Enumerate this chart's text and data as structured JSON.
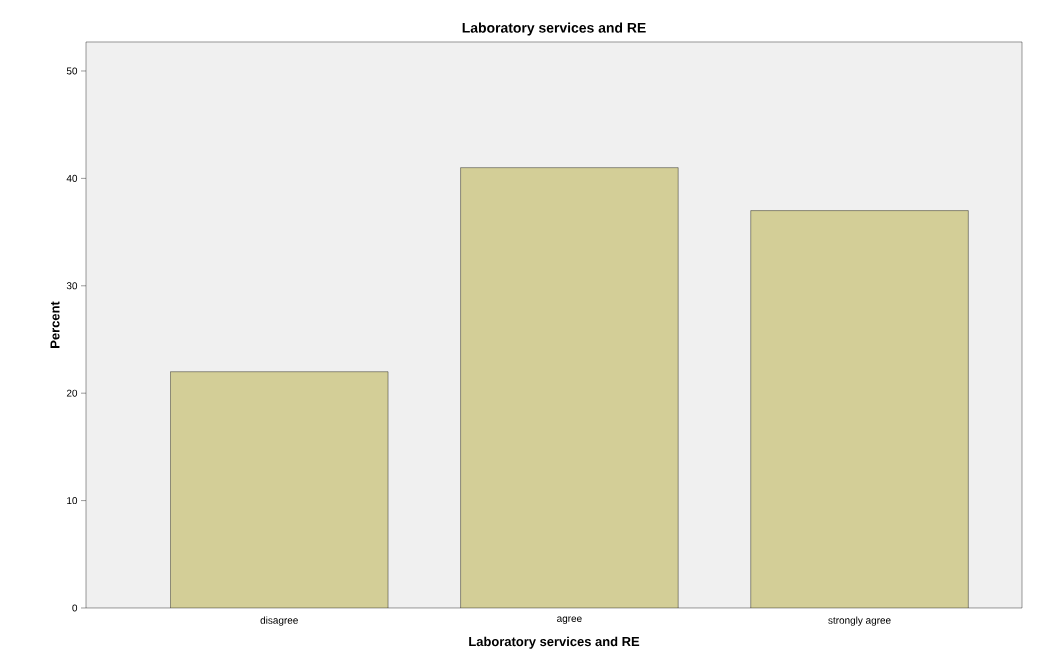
{
  "chart_data": {
    "type": "bar",
    "title": "Laboratory services and RE",
    "xlabel": "Laboratory services and RE",
    "ylabel": "Percent",
    "categories": [
      "disagree",
      "agree",
      "strongly agree"
    ],
    "values": [
      22,
      41,
      37
    ],
    "color": "#d3ce97",
    "ylim": [
      0,
      52.7
    ],
    "yticks": [
      0,
      10,
      20,
      30,
      40,
      50
    ],
    "grid": false
  }
}
